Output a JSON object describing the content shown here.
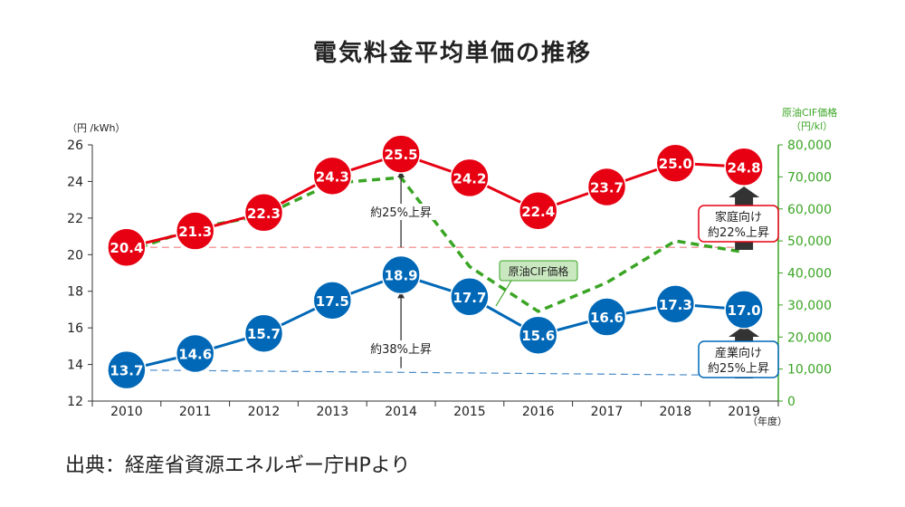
{
  "chart_data": {
    "type": "line",
    "title": "電気料金平均単価の推移",
    "source": "出典：経産省資源エネルギー庁HPより",
    "categories": [
      "2010",
      "2011",
      "2012",
      "2013",
      "2014",
      "2015",
      "2016",
      "2017",
      "2018",
      "2019"
    ],
    "x_unit": "（年度）",
    "y_left": {
      "label": "（円 /kWh）",
      "range": [
        12,
        26
      ],
      "ticks": [
        "12",
        "14",
        "16",
        "18",
        "20",
        "22",
        "24",
        "26"
      ]
    },
    "y_right": {
      "label_line1": "原油CIF価格",
      "label_line2": "（円/kl）",
      "range": [
        0,
        80000
      ],
      "ticks": [
        "0",
        "10,000",
        "20,000",
        "30,000",
        "40,000",
        "50,000",
        "60,000",
        "70,000",
        "80,000"
      ]
    },
    "series": [
      {
        "name": "家庭向け",
        "axis": "left",
        "color": "#e60012",
        "values": [
          20.4,
          21.3,
          22.3,
          24.3,
          25.5,
          24.2,
          22.4,
          23.7,
          25.0,
          24.8
        ],
        "labels": [
          "20.4",
          "21.3",
          "22.3",
          "24.3",
          "25.5",
          "24.2",
          "22.4",
          "23.7",
          "25.0",
          "24.8"
        ]
      },
      {
        "name": "産業向け",
        "axis": "left",
        "color": "#0068b7",
        "values": [
          13.7,
          14.6,
          15.7,
          17.5,
          18.9,
          17.7,
          15.6,
          16.6,
          17.3,
          17.0
        ],
        "labels": [
          "13.7",
          "14.6",
          "15.7",
          "17.5",
          "18.9",
          "17.7",
          "15.6",
          "16.6",
          "17.3",
          "17.0"
        ]
      },
      {
        "name": "原油CIF価格",
        "axis": "right",
        "color": "#3aa524",
        "values": [
          46500,
          54000,
          58000,
          68000,
          69800,
          42000,
          28000,
          37000,
          50000,
          46500
        ]
      }
    ],
    "baselines": {
      "household": 20.4,
      "industry": 13.7
    },
    "annotations": {
      "rise_household_2014": "約25%上昇",
      "rise_industry_2014": "約38%上昇",
      "crude_label": "原油CIF価格",
      "household_box_line1": "家庭向け",
      "household_box_line2": "約22%上昇",
      "industry_box_line1": "産業向け",
      "industry_box_line2": "約25%上昇"
    },
    "colors": {
      "red": "#e60012",
      "blue": "#0068b7",
      "green": "#3aa524",
      "axis": "#333333",
      "grid": "#cccccc"
    }
  }
}
